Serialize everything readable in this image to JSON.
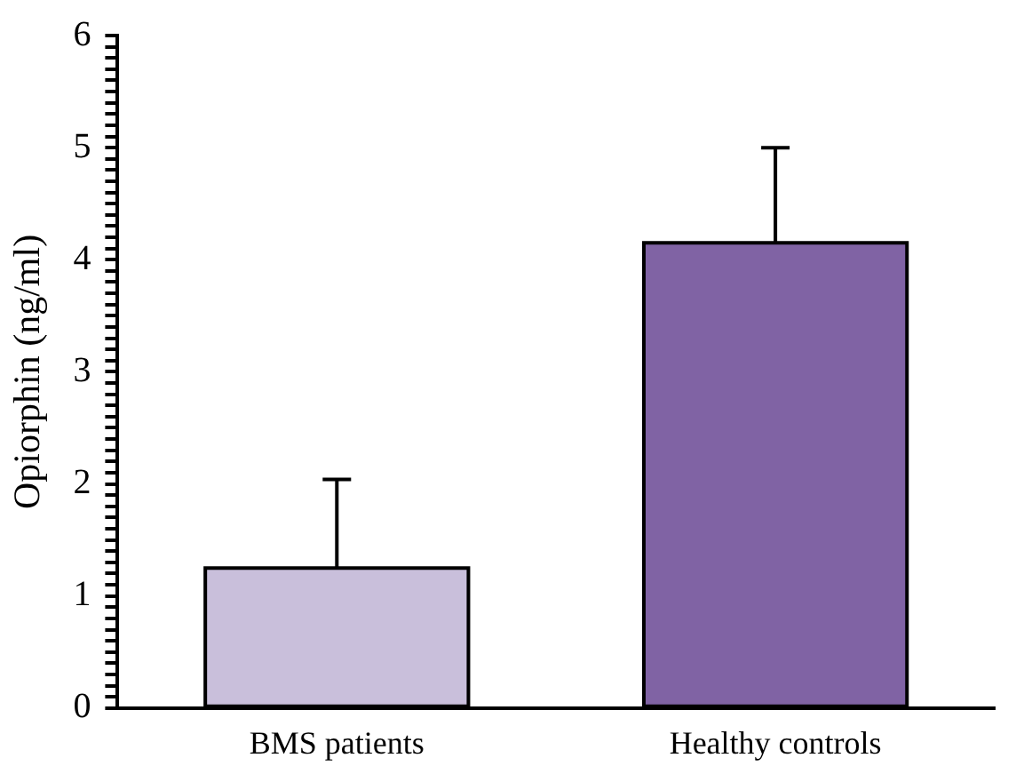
{
  "chart_data": {
    "type": "bar",
    "ylabel": "Opiorphin (ng/ml)",
    "categories": [
      "BMS patients",
      "Healthy controls"
    ],
    "values": [
      1.25,
      4.15
    ],
    "colors": [
      "#c9bfdb",
      "#8063a4"
    ],
    "errors": [
      [
        1.25,
        2.04
      ],
      [
        4.15,
        5.0
      ]
    ],
    "ylim": [
      0,
      6
    ],
    "yticks": [
      0,
      {
        "value": 0.1,
        "label": null
      },
      {
        "value": 0.2,
        "label": null
      },
      {
        "value": 0.3,
        "label": null
      },
      {
        "value": 0.4,
        "label": null
      },
      {
        "value": 0.5,
        "label": null
      },
      {
        "value": 0.6,
        "label": null
      },
      {
        "value": 0.7,
        "label": null
      },
      {
        "value": 0.8,
        "label": null
      },
      {
        "value": 0.9,
        "label": null
      },
      1,
      {
        "value": 1.1,
        "label": null
      },
      {
        "value": 1.2,
        "label": null
      },
      {
        "value": 1.3,
        "label": null
      },
      {
        "value": 1.4,
        "label": null
      },
      {
        "value": 1.5,
        "label": null
      },
      {
        "value": 1.6,
        "label": null
      },
      {
        "value": 1.7,
        "label": null
      },
      {
        "value": 1.8,
        "label": null
      },
      {
        "value": 1.9,
        "label": null
      },
      2,
      {
        "value": 2.1,
        "label": null
      },
      {
        "value": 2.2,
        "label": null
      },
      {
        "value": 2.3,
        "label": null
      },
      {
        "value": 2.4,
        "label": null
      },
      {
        "value": 2.5,
        "label": null
      },
      {
        "value": 2.6,
        "label": null
      },
      {
        "value": 2.7,
        "label": null
      },
      {
        "value": 2.8,
        "label": null
      },
      {
        "value": 2.9,
        "label": null
      },
      3,
      {
        "value": 3.1,
        "label": null
      },
      {
        "value": 3.2,
        "label": null
      },
      {
        "value": 3.3,
        "label": null
      },
      {
        "value": 3.4,
        "label": null
      },
      {
        "value": 3.5,
        "label": null
      },
      {
        "value": 3.6,
        "label": null
      },
      {
        "value": 3.7,
        "label": null
      },
      {
        "value": 3.8,
        "label": null
      },
      {
        "value": 3.9,
        "label": null
      },
      4,
      {
        "value": 4.1,
        "label": null
      },
      {
        "value": 4.2,
        "label": null
      },
      {
        "value": 4.3,
        "label": null
      },
      {
        "value": 4.4,
        "label": null
      },
      {
        "value": 4.5,
        "label": null
      },
      {
        "value": 4.6,
        "label": null
      },
      {
        "value": 4.7,
        "label": null
      },
      {
        "value": 4.8,
        "label": null
      },
      {
        "value": 4.9,
        "label": null
      },
      5,
      {
        "value": 5.1,
        "label": null
      },
      {
        "value": 5.2,
        "label": null
      },
      {
        "value": 5.3,
        "label": null
      },
      {
        "value": 5.4,
        "label": null
      },
      {
        "value": 5.5,
        "label": null
      },
      {
        "value": 5.6,
        "label": null
      },
      {
        "value": 5.7,
        "label": null
      },
      {
        "value": 5.8,
        "label": null
      },
      {
        "value": 5.9,
        "label": null
      },
      6
    ],
    "grid": false,
    "legend": false
  }
}
